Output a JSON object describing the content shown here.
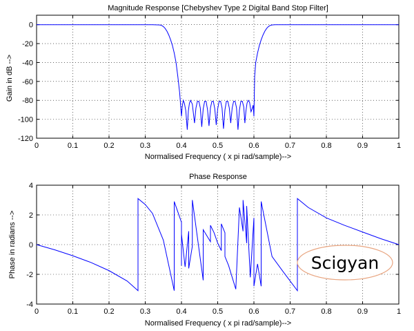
{
  "chart_data": [
    {
      "type": "line",
      "title": "Magnitude Response [Chebyshev Type 2 Digital Band Stop Filter]",
      "xlabel": "Normalised Frequency ( x pi rad/sample)-->",
      "ylabel": "Gain in dB -->",
      "xlim": [
        0,
        1
      ],
      "ylim": [
        -120,
        10
      ],
      "xticks": [
        0,
        0.1,
        0.2,
        0.3,
        0.4,
        0.5,
        0.6,
        0.7,
        0.8,
        0.9,
        1
      ],
      "xtick_labels": [
        "0",
        "0.1",
        "0.2",
        "0.3",
        "0.4",
        "0.5",
        "0.6",
        "0.7",
        "0.8",
        "0.9",
        "1"
      ],
      "yticks": [
        -120,
        -100,
        -80,
        -60,
        -40,
        -20,
        0
      ],
      "ytick_labels": [
        "-120",
        "-100",
        "-80",
        "-60",
        "-40",
        "-20",
        "0"
      ],
      "grid": true,
      "line_color": "#0000ff",
      "series": [
        {
          "x": [
            0,
            0.1,
            0.2,
            0.3,
            0.32,
            0.34,
            0.345,
            0.35,
            0.355,
            0.36,
            0.365,
            0.37,
            0.375,
            0.38,
            0.385,
            0.39,
            0.395,
            0.398,
            0.4,
            0.402,
            0.405,
            0.408,
            0.412,
            0.416,
            0.419,
            0.422,
            0.425,
            0.43,
            0.436,
            0.44,
            0.444,
            0.448,
            0.452,
            0.456,
            0.46,
            0.464,
            0.468,
            0.472,
            0.476,
            0.48,
            0.484,
            0.488,
            0.492,
            0.496,
            0.5,
            0.504,
            0.508,
            0.512,
            0.516,
            0.52,
            0.524,
            0.528,
            0.532,
            0.536,
            0.54,
            0.544,
            0.548,
            0.552,
            0.556,
            0.56,
            0.564,
            0.568,
            0.572,
            0.575,
            0.578,
            0.581,
            0.584,
            0.588,
            0.592,
            0.595,
            0.598,
            0.6,
            0.602,
            0.605,
            0.61,
            0.615,
            0.62,
            0.625,
            0.63,
            0.635,
            0.64,
            0.645,
            0.65,
            0.655,
            0.66,
            0.68,
            0.7,
            0.8,
            0.9,
            1
          ],
          "y": [
            0,
            0,
            0,
            0,
            0,
            -0.3,
            -0.8,
            -2,
            -4,
            -7,
            -11,
            -16,
            -22,
            -30,
            -40,
            -55,
            -72,
            -87,
            -97,
            -87,
            -80,
            -83,
            -91,
            -111,
            -91,
            -83,
            -80,
            -84,
            -104,
            -88,
            -81,
            -81,
            -88,
            -108,
            -89,
            -81,
            -81,
            -90,
            -107,
            -88,
            -81,
            -81,
            -89,
            -106,
            -89,
            -81,
            -81,
            -88,
            -110,
            -90,
            -81,
            -81,
            -88,
            -104,
            -88,
            -81,
            -81,
            -88,
            -111,
            -90,
            -81,
            -81,
            -87,
            -104,
            -91,
            -83,
            -80,
            -82,
            -92,
            -89,
            -85,
            -97,
            -55,
            -40,
            -30,
            -22,
            -16,
            -11,
            -7,
            -4,
            -2,
            -0.8,
            -0.3,
            -0.1,
            0,
            0,
            0,
            0,
            0,
            0
          ]
        }
      ]
    },
    {
      "type": "line",
      "title": "Phase Response",
      "xlabel": "Normalised Frequency ( x pi rad/sample)-->",
      "ylabel": "Phase in radians -->",
      "xlim": [
        0,
        1
      ],
      "ylim": [
        -4,
        4
      ],
      "xticks": [
        0,
        0.1,
        0.2,
        0.3,
        0.4,
        0.5,
        0.6,
        0.7,
        0.8,
        0.9,
        1
      ],
      "xtick_labels": [
        "0",
        "0.1",
        "0.2",
        "0.3",
        "0.4",
        "0.5",
        "0.6",
        "0.7",
        "0.8",
        "0.9",
        "1"
      ],
      "yticks": [
        -4,
        -2,
        0,
        2,
        4
      ],
      "ytick_labels": [
        "-4",
        "-2",
        "0",
        "2",
        "4"
      ],
      "grid": true,
      "line_color": "#0000ff",
      "series": [
        {
          "x": [
            0,
            0.05,
            0.1,
            0.15,
            0.2,
            0.25,
            0.28,
            0.28,
            0.3,
            0.32,
            0.35,
            0.38,
            0.38,
            0.4,
            0.4,
            0.4,
            0.41,
            0.42,
            0.42,
            0.43,
            0.43,
            0.44,
            0.45,
            0.46,
            0.46,
            0.48,
            0.48,
            0.49,
            0.5,
            0.51,
            0.51,
            0.52,
            0.52,
            0.53,
            0.54,
            0.55,
            0.56,
            0.57,
            0.57,
            0.58,
            0.58,
            0.59,
            0.6,
            0.6,
            0.6,
            0.61,
            0.62,
            0.62,
            0.65,
            0.68,
            0.72,
            0.72,
            0.75,
            0.8,
            0.85,
            0.9,
            0.95,
            1
          ],
          "y": [
            0,
            -0.35,
            -0.75,
            -1.2,
            -1.75,
            -2.45,
            -3.1,
            3.1,
            2.7,
            2.1,
            0.3,
            -3.1,
            2.9,
            1.5,
            -1.4,
            0.7,
            -1.5,
            0.9,
            -1.6,
            -0.1,
            3.0,
            1.2,
            -0.6,
            -2.4,
            1.0,
            0.2,
            1.3,
            0.8,
            0.1,
            -0.4,
            1.4,
            0.8,
            -0.8,
            -1.4,
            -2.2,
            -3.0,
            2.5,
            0.9,
            3.0,
            0.1,
            2.6,
            -2.2,
            1.8,
            1.2,
            -2.8,
            -1.3,
            -2.8,
            2.9,
            -0.8,
            -1.8,
            -3.1,
            3.1,
            2.5,
            1.8,
            1.3,
            0.85,
            0.4,
            0
          ]
        }
      ]
    }
  ],
  "watermark": {
    "text": "Scigyan",
    "text_color": "#e0895a",
    "border_color": "#e8a47f"
  }
}
